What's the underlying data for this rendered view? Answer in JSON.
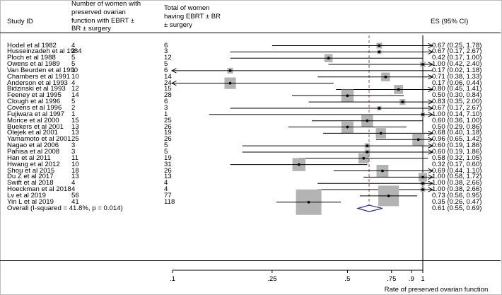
{
  "headers": {
    "study": "Study ID",
    "preserved": [
      "Number of women with",
      "preserved ovarian",
      "function with EBRT ±",
      "BR ± surgery"
    ],
    "total": [
      "Total of women",
      "having EBRT ± BR",
      "± surgery"
    ],
    "es": "ES (95% CI)"
  },
  "chart_data": {
    "type": "forest",
    "x_scale": "log",
    "xlabel": "Rate of preserved ovarian function",
    "tick_values": [
      0.1,
      0.25,
      0.5,
      0.75,
      0.9,
      1
    ],
    "tick_labels": [
      ".1",
      ".25",
      ".5",
      ".75",
      ".9",
      "1"
    ],
    "overall_line": 0.61,
    "reference_line": 1,
    "studies": [
      {
        "study": "Hodel et al 1982",
        "events": "4",
        "total": "6",
        "es": 0.67,
        "lo": 0.25,
        "hi": 1.78,
        "label": "0.67 (0.25, 1.78)"
      },
      {
        "study": "Husseinzadeh  et al 1984",
        "events": "2",
        "total": "3",
        "es": 0.67,
        "lo": 0.17,
        "hi": 2.67,
        "label": "0.67 (0.17, 2.67)"
      },
      {
        "study": "Ploch  et al 1988",
        "events": "5",
        "total": "12",
        "es": 0.42,
        "lo": 0.17,
        "hi": 1.0,
        "label": "0.42 (0.17, 1.00)"
      },
      {
        "study": "Owens et al  1989",
        "events": "5",
        "total": "5",
        "es": 1.0,
        "lo": 0.42,
        "hi": 2.4,
        "label": "1.00 (0.42, 2.40)"
      },
      {
        "study": "Van Beurden  et al 1990",
        "events": "1",
        "total": "6",
        "es": 0.17,
        "lo": 0.02,
        "hi": 1.18,
        "label": "0.17 (0.02, 1.18)"
      },
      {
        "study": "Chambers et al  1991",
        "events": "10",
        "total": "14",
        "es": 0.71,
        "lo": 0.38,
        "hi": 1.33,
        "label": "0.71 (0.38, 1.33)"
      },
      {
        "study": "Anderson et al  1993",
        "events": "4",
        "total": "24",
        "es": 0.17,
        "lo": 0.06,
        "hi": 0.44,
        "label": "0.17 (0.06, 0.44)"
      },
      {
        "study": "Bidzinski et al  1993",
        "events": "12",
        "total": "15",
        "es": 0.8,
        "lo": 0.45,
        "hi": 1.41,
        "label": "0.80 (0.45, 1.41)"
      },
      {
        "study": "Feeney et al  1995",
        "events": "14",
        "total": "28",
        "es": 0.5,
        "lo": 0.3,
        "hi": 0.84,
        "label": "0.50 (0.30, 0.84)"
      },
      {
        "study": "Clough et al 1996",
        "events": "5",
        "total": "6",
        "es": 0.83,
        "lo": 0.35,
        "hi": 2.0,
        "label": "0.83 (0.35, 2.00)"
      },
      {
        "study": "Covens et al 1996",
        "events": "2",
        "total": "3",
        "es": 0.67,
        "lo": 0.17,
        "hi": 2.67,
        "label": "0.67 (0.17, 2.67)"
      },
      {
        "study": "Fujiwara et al 1997",
        "events": "1",
        "total": "1",
        "es": 1.0,
        "lo": 0.14,
        "hi": 7.1,
        "label": "1.00 (0.14, 7.10)"
      },
      {
        "study": "Morice et al  2000",
        "events": "15",
        "total": "25",
        "es": 0.6,
        "lo": 0.36,
        "hi": 1.0,
        "label": "0.60 (0.36, 1.00)"
      },
      {
        "study": "Buekers et al  2001",
        "events": "13",
        "total": "26",
        "es": 0.5,
        "lo": 0.29,
        "hi": 0.86,
        "label": "0.50 (0.29, 0.86)"
      },
      {
        "study": "Olejek et al 2001",
        "events": "13",
        "total": "19",
        "es": 0.68,
        "lo": 0.4,
        "hi": 1.18,
        "label": "0.68 (0.40, 1.18)"
      },
      {
        "study": "Yamamoto et al  2001",
        "events": "25",
        "total": "26",
        "es": 0.96,
        "lo": 0.65,
        "hi": 1.42,
        "label": "0.96 (0.65, 1.42)"
      },
      {
        "study": "Nagao et al 2006",
        "events": "3",
        "total": "5",
        "es": 0.6,
        "lo": 0.19,
        "hi": 1.86,
        "label": "0.60 (0.19, 1.86)"
      },
      {
        "study": "Pahisa et al 2008",
        "events": "3",
        "total": "5",
        "es": 0.6,
        "lo": 0.19,
        "hi": 1.86,
        "label": "0.60 (0.19, 1.86)"
      },
      {
        "study": "Han et al 2011",
        "events": "11",
        "total": "19",
        "es": 0.58,
        "lo": 0.32,
        "hi": 1.05,
        "label": "0.58 (0.32, 1.05)"
      },
      {
        "study": "Hwang et al  2012",
        "events": "10",
        "total": "31",
        "es": 0.32,
        "lo": 0.17,
        "hi": 0.6,
        "label": "0.32 (0.17, 0.60)"
      },
      {
        "study": "Shou et al 2015",
        "events": "18",
        "total": "26",
        "es": 0.69,
        "lo": 0.44,
        "hi": 1.1,
        "label": "0.69 (0.44, 1.10)"
      },
      {
        "study": "Du Z et al 2017",
        "events": "13",
        "total": "13",
        "es": 1.0,
        "lo": 0.58,
        "hi": 1.72,
        "label": "1.00 (0.58, 1.72)"
      },
      {
        "study": "Swift et al 2018",
        "events": "4",
        "total": "4",
        "es": 1.0,
        "lo": 0.38,
        "hi": 2.66,
        "label": "1.00 (0.38, 2.66)"
      },
      {
        "study": "Hoeckman et al 2018",
        "events": "4",
        "total": "4",
        "es": 1.0,
        "lo": 0.38,
        "hi": 2.66,
        "label": "1.00 (0.38, 2.66)"
      },
      {
        "study": "Lv et al 2019",
        "events": "56",
        "total": "77",
        "es": 0.73,
        "lo": 0.56,
        "hi": 0.95,
        "label": "0.73 (0.56, 0.95)"
      },
      {
        "study": "Yin L et al 2019",
        "events": "41",
        "total": "118",
        "es": 0.35,
        "lo": 0.26,
        "hi": 0.47,
        "label": "0.35 (0.26, 0.47)"
      }
    ],
    "overall": {
      "label": "Overall  (I-squared = 41.8%, p = 0.014)",
      "es": 0.61,
      "lo": 0.55,
      "hi": 0.69,
      "ci_label": "0.61 (0.55, 0.69)"
    }
  }
}
